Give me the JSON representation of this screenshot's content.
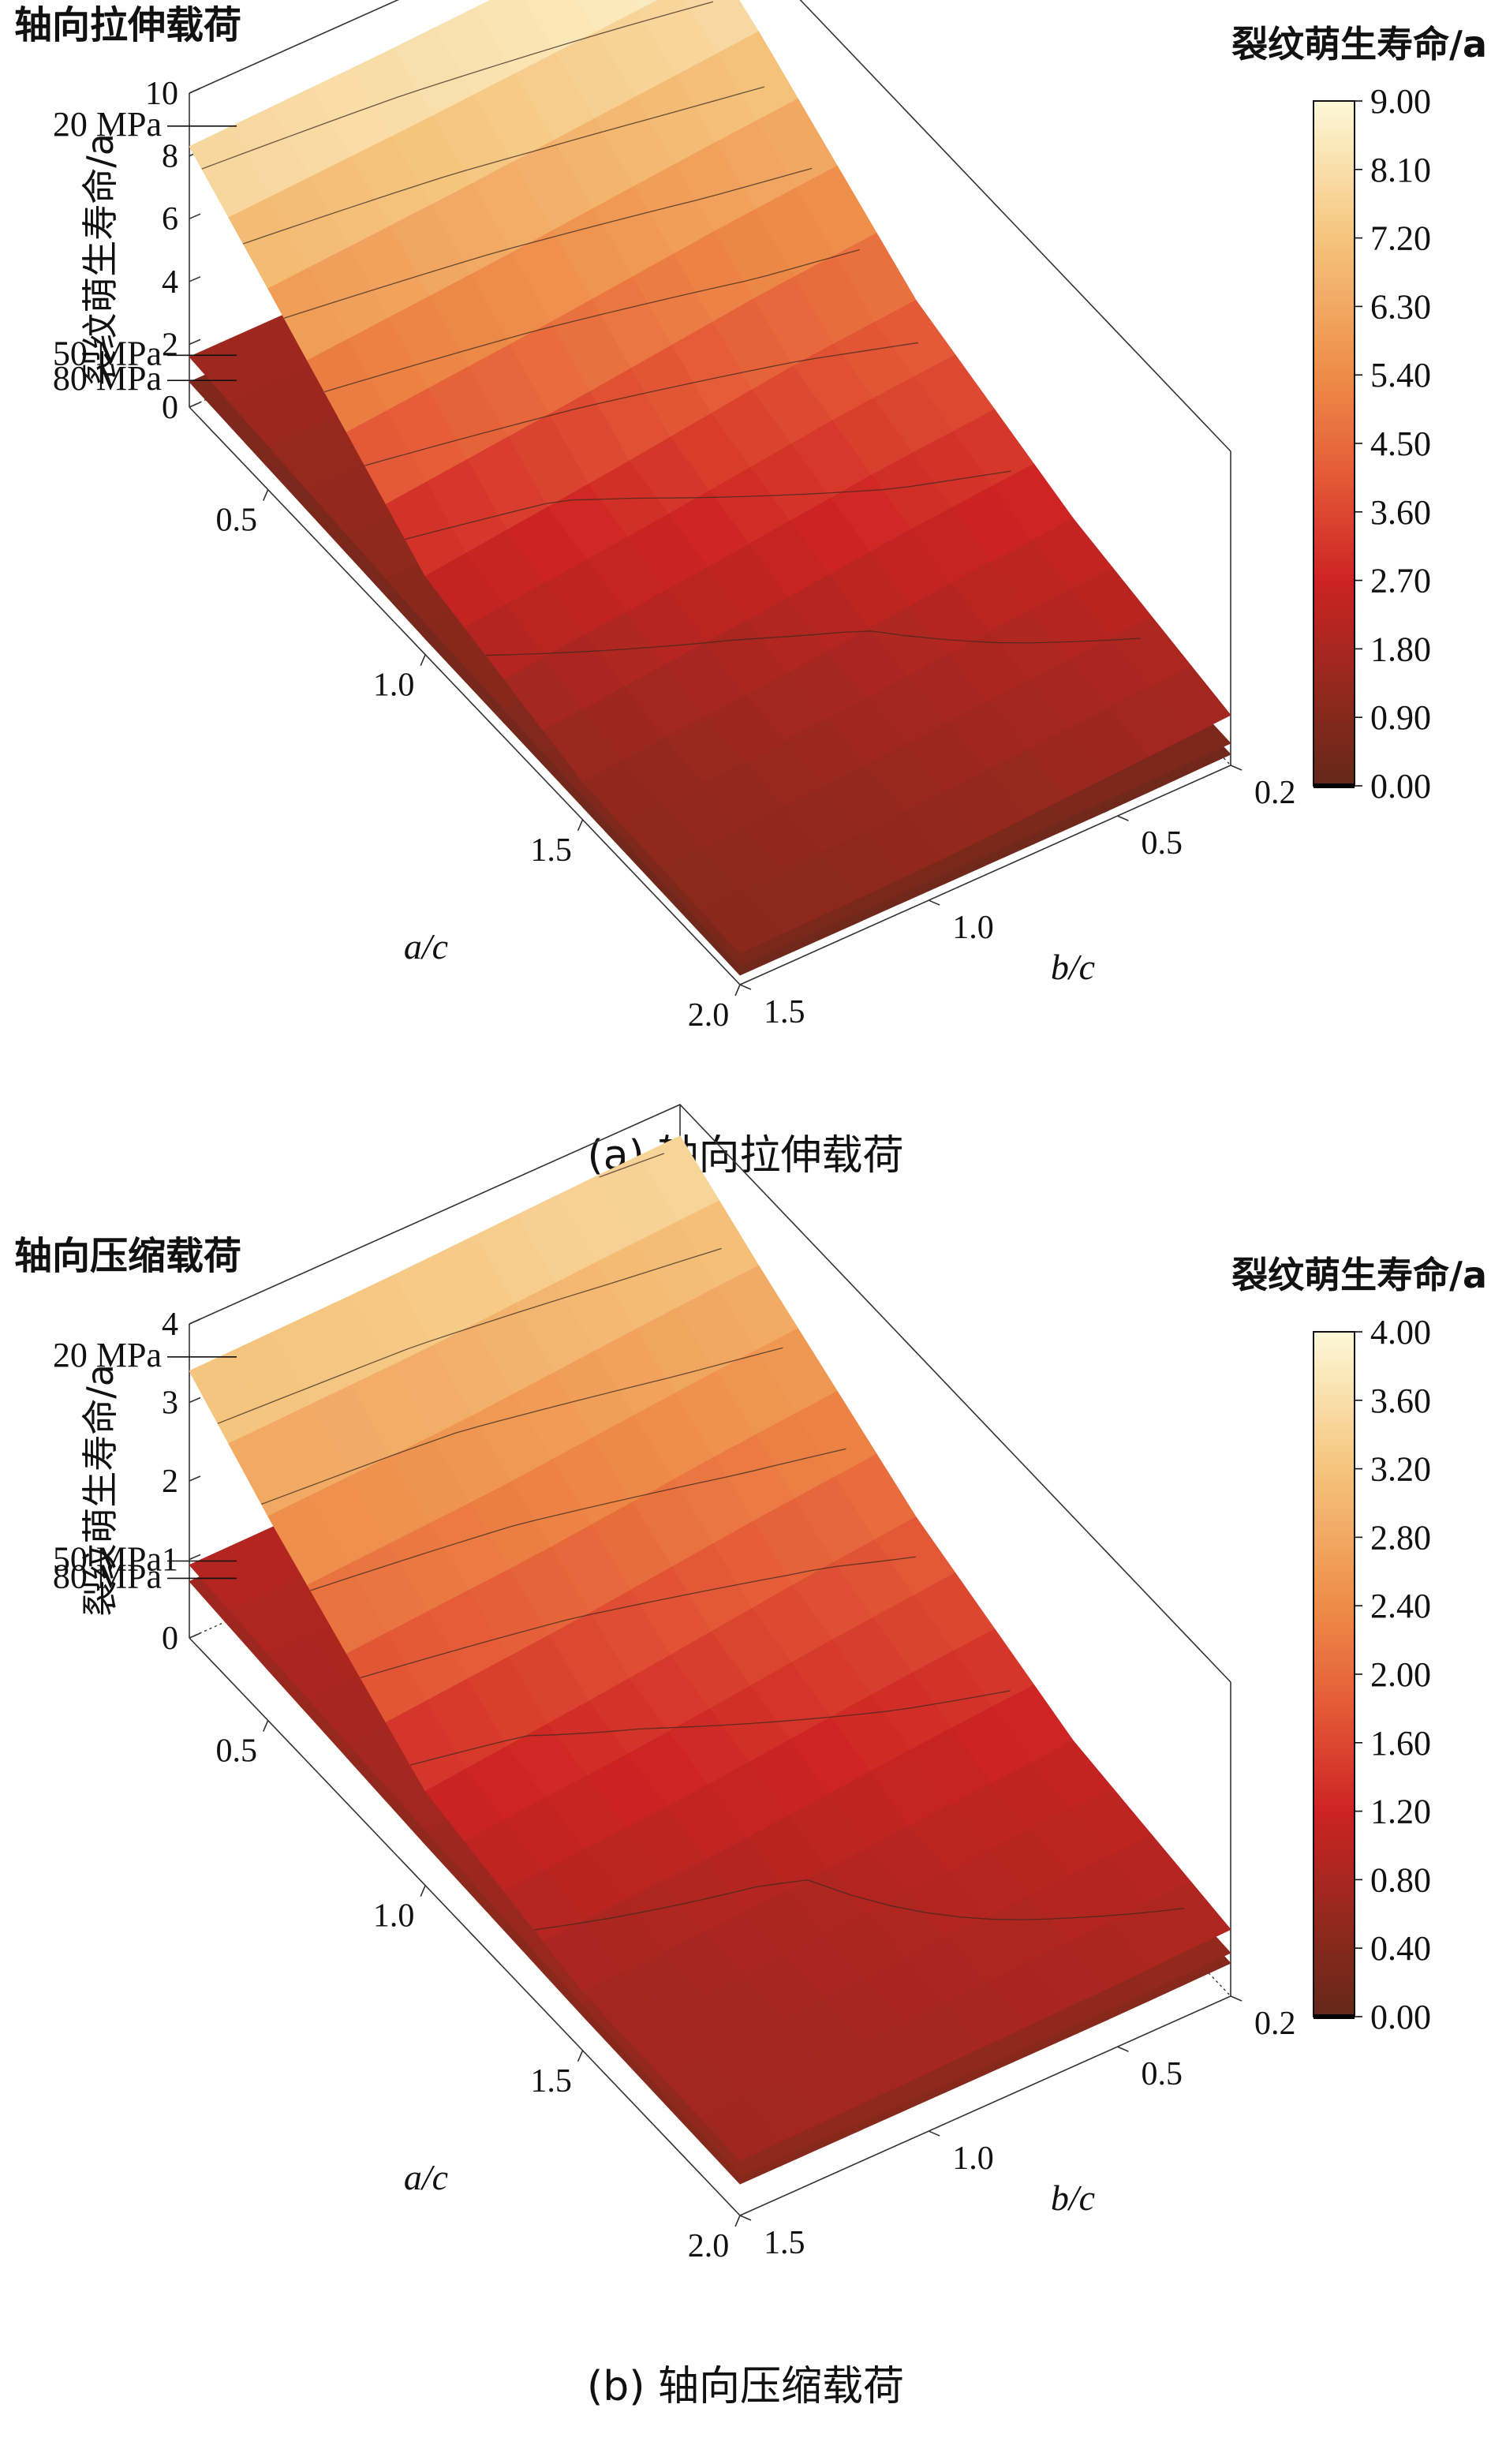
{
  "chart_data": [
    {
      "type": "surface3d",
      "panel_title": "轴向拉伸载荷",
      "caption": "(a) 轴向拉伸载荷",
      "colorbar_title": "裂纹萌生寿命/a",
      "colorbar_ticks": [
        "9.00",
        "8.10",
        "7.20",
        "6.30",
        "5.40",
        "4.50",
        "3.60",
        "2.70",
        "1.80",
        "0.90",
        "0.00"
      ],
      "vmax": 9.0,
      "zlabel": "裂纹萌生寿命/a",
      "zlim": [
        0,
        10
      ],
      "zticks": [
        "0",
        "2",
        "4",
        "6",
        "8",
        "10"
      ],
      "xlabel": "a/c",
      "xticks": [
        "0.5",
        "1.0",
        "1.5",
        "2.0"
      ],
      "ylabel": "b/c",
      "yticks": [
        "0.2",
        "0.5",
        "1.0",
        "1.5"
      ],
      "a_c": [
        0.25,
        0.5,
        1.0,
        1.5,
        2.0
      ],
      "b_c": [
        0.2,
        0.5,
        1.0,
        1.5
      ],
      "series": [
        {
          "name": "20 MPa",
          "values": [
            [
              9.0,
              8.8,
              8.5,
              8.3
            ],
            [
              7.6,
              7.3,
              6.8,
              6.4
            ],
            [
              4.3,
              4.0,
              3.2,
              2.5
            ],
            [
              2.6,
              2.3,
              1.7,
              1.2
            ],
            [
              1.6,
              1.4,
              1.1,
              1.0
            ]
          ]
        },
        {
          "name": "50 MPa",
          "values": [
            [
              1.7,
              1.65,
              1.6,
              1.6
            ],
            [
              1.5,
              1.45,
              1.4,
              1.4
            ],
            [
              1.15,
              1.1,
              1.05,
              1.0
            ],
            [
              0.85,
              0.8,
              0.8,
              0.75
            ],
            [
              0.7,
              0.65,
              0.6,
              0.6
            ]
          ]
        },
        {
          "name": "80 MPa",
          "values": [
            [
              0.9,
              0.85,
              0.8,
              0.8
            ],
            [
              0.8,
              0.75,
              0.7,
              0.7
            ],
            [
              0.6,
              0.55,
              0.5,
              0.5
            ],
            [
              0.45,
              0.4,
              0.4,
              0.4
            ],
            [
              0.35,
              0.3,
              0.3,
              0.3
            ]
          ]
        }
      ]
    },
    {
      "type": "surface3d",
      "panel_title": "轴向压缩载荷",
      "caption": "(b) 轴向压缩载荷",
      "colorbar_title": "裂纹萌生寿命/a",
      "colorbar_ticks": [
        "4.00",
        "3.60",
        "3.20",
        "2.80",
        "2.40",
        "2.00",
        "1.60",
        "1.20",
        "0.80",
        "0.40",
        "0.00"
      ],
      "vmax": 4.0,
      "zlabel": "裂纹萌生寿命/a",
      "zlim": [
        0,
        4
      ],
      "zticks": [
        "0",
        "1",
        "2",
        "3",
        "4"
      ],
      "xlabel": "a/c",
      "xticks": [
        "0.5",
        "1.0",
        "1.5",
        "2.0"
      ],
      "ylabel": "b/c",
      "yticks": [
        "0.2",
        "0.5",
        "1.0",
        "1.5"
      ],
      "a_c": [
        0.25,
        0.5,
        1.0,
        1.5,
        2.0
      ],
      "b_c": [
        0.2,
        0.5,
        1.0,
        1.5
      ],
      "series": [
        {
          "name": "20 MPa",
          "values": [
            [
              3.6,
              3.55,
              3.45,
              3.4
            ],
            [
              3.0,
              2.9,
              2.7,
              2.6
            ],
            [
              1.9,
              1.75,
              1.45,
              1.2
            ],
            [
              1.15,
              1.05,
              0.85,
              0.75
            ],
            [
              0.85,
              0.8,
              0.75,
              0.7
            ]
          ]
        },
        {
          "name": "50 MPa",
          "values": [
            [
              1.0,
              0.98,
              0.95,
              0.93
            ],
            [
              0.92,
              0.9,
              0.87,
              0.85
            ],
            [
              0.78,
              0.75,
              0.72,
              0.7
            ],
            [
              0.65,
              0.62,
              0.6,
              0.58
            ],
            [
              0.55,
              0.52,
              0.5,
              0.5
            ]
          ]
        },
        {
          "name": "80 MPa",
          "values": [
            [
              0.78,
              0.76,
              0.74,
              0.72
            ],
            [
              0.7,
              0.68,
              0.66,
              0.64
            ],
            [
              0.58,
              0.56,
              0.54,
              0.52
            ],
            [
              0.48,
              0.46,
              0.45,
              0.44
            ],
            [
              0.42,
              0.4,
              0.4,
              0.4
            ]
          ]
        }
      ]
    }
  ]
}
